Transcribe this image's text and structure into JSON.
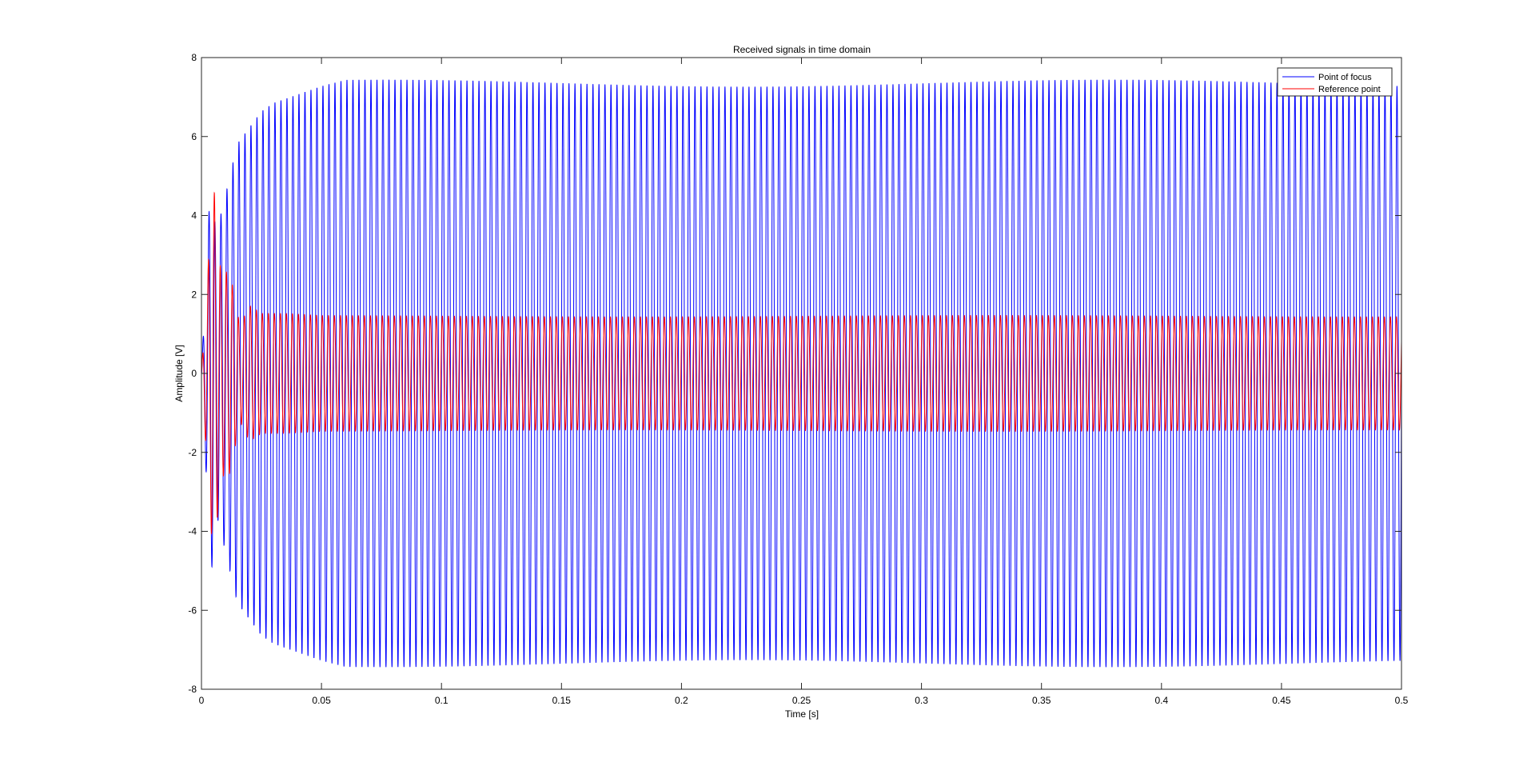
{
  "chart_data": {
    "type": "line",
    "title": "Received signals in time domain",
    "xlabel": "Time [s]",
    "ylabel": "Amplitude [V]",
    "xlim": [
      0,
      0.5
    ],
    "ylim": [
      -8,
      8
    ],
    "xticks": [
      0,
      0.05,
      0.1,
      0.15,
      0.2,
      0.25,
      0.3,
      0.35,
      0.4,
      0.45,
      0.5
    ],
    "xtick_labels": [
      "0",
      "0.05",
      "0.1",
      "0.15",
      "0.2",
      "0.25",
      "0.3",
      "0.35",
      "0.4",
      "0.45",
      "0.5"
    ],
    "yticks": [
      -8,
      -6,
      -4,
      -2,
      0,
      2,
      4,
      6,
      8
    ],
    "ytick_labels": [
      "-8",
      "-6",
      "-4",
      "-2",
      "0",
      "2",
      "4",
      "6",
      "8"
    ],
    "grid": false,
    "legend_position": "top-right",
    "series": [
      {
        "name": "Point of focus",
        "color": "#0000ff",
        "frequency_hz": 400,
        "steady_amplitude": 7.35,
        "envelope": {
          "t": [
            0,
            0.004,
            0.006,
            0.01,
            0.015,
            0.02,
            0.025,
            0.03,
            0.04,
            0.05,
            0.06,
            0.5
          ],
          "amp": [
            0,
            5.2,
            3.5,
            4.5,
            5.8,
            6.2,
            6.6,
            6.8,
            7.0,
            7.2,
            7.35,
            7.35
          ]
        }
      },
      {
        "name": "Reference point",
        "color": "#ff0000",
        "frequency_hz": 400,
        "steady_amplitude": 1.45,
        "envelope": {
          "t": [
            0,
            0.002,
            0.005,
            0.008,
            0.012,
            0.016,
            0.02,
            0.025,
            0.035,
            0.05,
            0.5
          ],
          "amp": [
            0,
            2.0,
            4.8,
            2.6,
            2.5,
            1.2,
            1.7,
            1.5,
            1.5,
            1.45,
            1.45
          ]
        }
      }
    ]
  }
}
